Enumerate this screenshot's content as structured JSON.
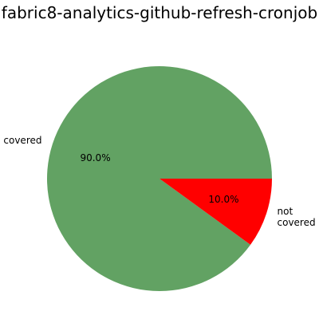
{
  "chart_data": {
    "type": "pie",
    "title": "fabric8-analytics-github-refresh-cronjob",
    "slices": [
      {
        "label": "covered",
        "label_lines": [
          "covered"
        ],
        "value": 90.0,
        "percent_label": "90.0%",
        "color": "#62a263"
      },
      {
        "label": "not covered",
        "label_lines": [
          "not",
          "covered"
        ],
        "value": 10.0,
        "percent_label": "10.0%",
        "color": "#ff0000"
      }
    ]
  }
}
